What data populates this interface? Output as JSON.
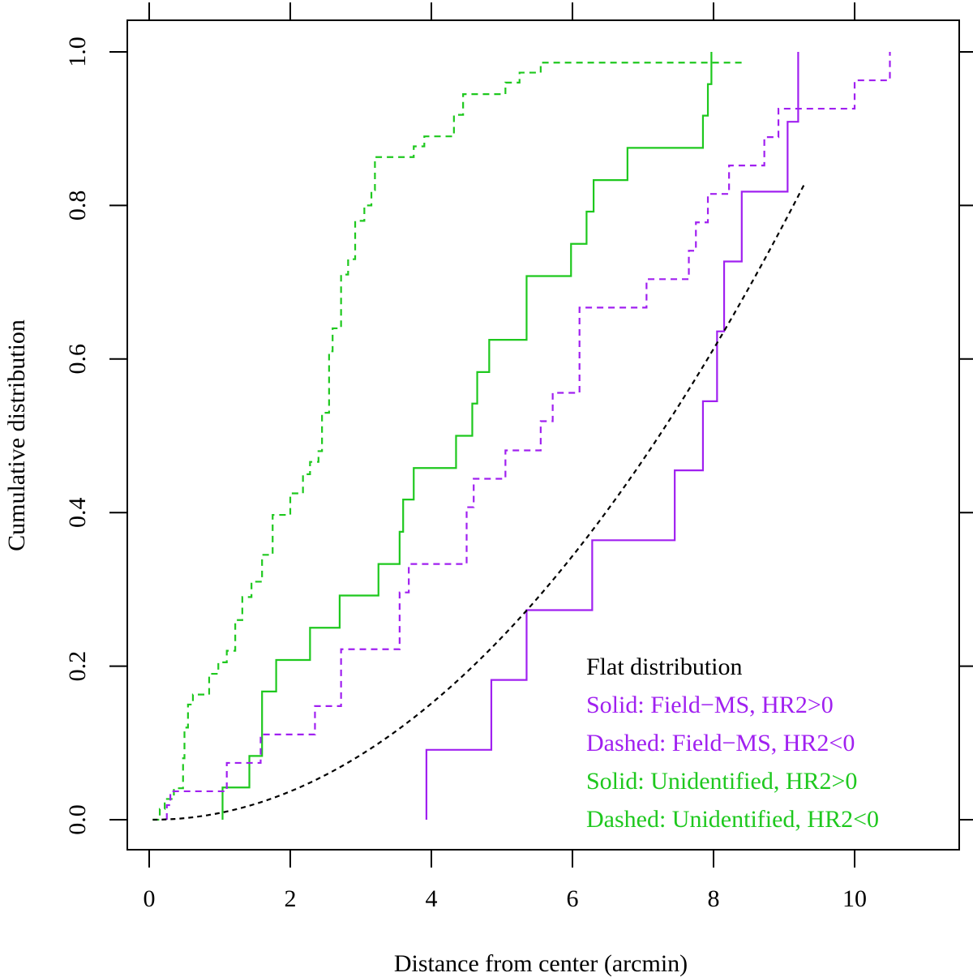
{
  "chart_data": {
    "type": "line",
    "title": "",
    "xlabel": "Distance from center (arcmin)",
    "ylabel": "Cumulative distribution",
    "xlim": [
      -0.3,
      11.5
    ],
    "ylim": [
      -0.04,
      1.04
    ],
    "xticks": [
      0,
      2,
      4,
      6,
      8,
      10
    ],
    "yticks": [
      0.0,
      0.2,
      0.4,
      0.6,
      0.8,
      1.0
    ],
    "xtick_labels": [
      "0",
      "2",
      "4",
      "6",
      "8",
      "10"
    ],
    "ytick_labels": [
      "0.0",
      "0.2",
      "0.4",
      "0.6",
      "0.8",
      "1.0"
    ],
    "top_axis_ticks": [
      0,
      2,
      4,
      6,
      8,
      10
    ],
    "right_axis_ticks": [
      0.0,
      0.2,
      0.4,
      0.6,
      0.8,
      1.0
    ],
    "colors": {
      "green": "#1ec81e",
      "purple": "#a020f0",
      "black": "#000000"
    },
    "legend": [
      {
        "text": "Flat distribution",
        "color": "#000000"
      },
      {
        "text": "Solid: Field−MS, HR2>0",
        "color": "#a020f0"
      },
      {
        "text": "Dashed: Field−MS, HR2<0",
        "color": "#a020f0"
      },
      {
        "text": "Solid: Unidentified, HR2>0",
        "color": "#1ec81e"
      },
      {
        "text": "Dashed: Unidentified, HR2<0",
        "color": "#1ec81e"
      }
    ],
    "series": [
      {
        "name": "Solid: Unidentified, HR2>0",
        "color": "#1ec81e",
        "style": "solid",
        "step": true,
        "points": [
          [
            1.04,
            0.0
          ],
          [
            1.04,
            0.042
          ],
          [
            1.42,
            0.042
          ],
          [
            1.42,
            0.083
          ],
          [
            1.6,
            0.083
          ],
          [
            1.6,
            0.167
          ],
          [
            1.8,
            0.167
          ],
          [
            1.8,
            0.208
          ],
          [
            2.28,
            0.208
          ],
          [
            2.28,
            0.25
          ],
          [
            2.7,
            0.25
          ],
          [
            2.7,
            0.292
          ],
          [
            3.25,
            0.292
          ],
          [
            3.25,
            0.333
          ],
          [
            3.55,
            0.333
          ],
          [
            3.55,
            0.375
          ],
          [
            3.6,
            0.375
          ],
          [
            3.6,
            0.417
          ],
          [
            3.75,
            0.417
          ],
          [
            3.75,
            0.458
          ],
          [
            4.35,
            0.458
          ],
          [
            4.35,
            0.5
          ],
          [
            4.58,
            0.5
          ],
          [
            4.58,
            0.542
          ],
          [
            4.65,
            0.542
          ],
          [
            4.65,
            0.583
          ],
          [
            4.82,
            0.583
          ],
          [
            4.82,
            0.625
          ],
          [
            5.35,
            0.625
          ],
          [
            5.35,
            0.708
          ],
          [
            5.98,
            0.708
          ],
          [
            5.98,
            0.75
          ],
          [
            6.2,
            0.75
          ],
          [
            6.2,
            0.792
          ],
          [
            6.3,
            0.792
          ],
          [
            6.3,
            0.833
          ],
          [
            6.78,
            0.833
          ],
          [
            6.78,
            0.875
          ],
          [
            7.85,
            0.875
          ],
          [
            7.85,
            0.917
          ],
          [
            7.92,
            0.917
          ],
          [
            7.92,
            0.958
          ],
          [
            7.97,
            0.958
          ],
          [
            7.97,
            1.0
          ]
        ]
      },
      {
        "name": "Dashed: Unidentified, HR2<0",
        "color": "#1ec81e",
        "style": "dashed",
        "step": true,
        "points": [
          [
            0.05,
            0.0
          ],
          [
            0.15,
            0.0
          ],
          [
            0.15,
            0.014
          ],
          [
            0.22,
            0.014
          ],
          [
            0.22,
            0.027
          ],
          [
            0.35,
            0.027
          ],
          [
            0.35,
            0.041
          ],
          [
            0.48,
            0.041
          ],
          [
            0.48,
            0.08
          ],
          [
            0.5,
            0.08
          ],
          [
            0.5,
            0.12
          ],
          [
            0.55,
            0.12
          ],
          [
            0.55,
            0.15
          ],
          [
            0.62,
            0.15
          ],
          [
            0.62,
            0.163
          ],
          [
            0.85,
            0.163
          ],
          [
            0.85,
            0.19
          ],
          [
            0.98,
            0.19
          ],
          [
            0.98,
            0.205
          ],
          [
            1.1,
            0.205
          ],
          [
            1.1,
            0.22
          ],
          [
            1.22,
            0.22
          ],
          [
            1.22,
            0.26
          ],
          [
            1.32,
            0.26
          ],
          [
            1.32,
            0.29
          ],
          [
            1.45,
            0.29
          ],
          [
            1.45,
            0.31
          ],
          [
            1.6,
            0.31
          ],
          [
            1.6,
            0.345
          ],
          [
            1.75,
            0.345
          ],
          [
            1.75,
            0.397
          ],
          [
            2.0,
            0.397
          ],
          [
            2.0,
            0.425
          ],
          [
            2.18,
            0.425
          ],
          [
            2.18,
            0.45
          ],
          [
            2.28,
            0.45
          ],
          [
            2.28,
            0.466
          ],
          [
            2.4,
            0.466
          ],
          [
            2.4,
            0.48
          ],
          [
            2.45,
            0.48
          ],
          [
            2.45,
            0.53
          ],
          [
            2.55,
            0.53
          ],
          [
            2.55,
            0.61
          ],
          [
            2.6,
            0.61
          ],
          [
            2.6,
            0.64
          ],
          [
            2.72,
            0.64
          ],
          [
            2.72,
            0.71
          ],
          [
            2.82,
            0.71
          ],
          [
            2.82,
            0.73
          ],
          [
            2.92,
            0.73
          ],
          [
            2.92,
            0.78
          ],
          [
            3.05,
            0.78
          ],
          [
            3.05,
            0.8
          ],
          [
            3.15,
            0.8
          ],
          [
            3.15,
            0.82
          ],
          [
            3.2,
            0.82
          ],
          [
            3.2,
            0.863
          ],
          [
            3.75,
            0.863
          ],
          [
            3.75,
            0.877
          ],
          [
            3.9,
            0.877
          ],
          [
            3.9,
            0.89
          ],
          [
            4.32,
            0.89
          ],
          [
            4.32,
            0.918
          ],
          [
            4.45,
            0.918
          ],
          [
            4.45,
            0.945
          ],
          [
            5.05,
            0.945
          ],
          [
            5.05,
            0.96
          ],
          [
            5.25,
            0.96
          ],
          [
            5.25,
            0.973
          ],
          [
            5.55,
            0.973
          ],
          [
            5.55,
            0.986
          ],
          [
            8.4,
            0.986
          ]
        ]
      },
      {
        "name": "Solid: Field−MS, HR2>0",
        "color": "#a020f0",
        "style": "solid",
        "step": true,
        "points": [
          [
            3.93,
            0.0
          ],
          [
            3.93,
            0.091
          ],
          [
            4.85,
            0.091
          ],
          [
            4.85,
            0.182
          ],
          [
            5.35,
            0.182
          ],
          [
            5.35,
            0.273
          ],
          [
            6.28,
            0.273
          ],
          [
            6.28,
            0.364
          ],
          [
            7.45,
            0.364
          ],
          [
            7.45,
            0.455
          ],
          [
            7.85,
            0.455
          ],
          [
            7.85,
            0.545
          ],
          [
            8.05,
            0.545
          ],
          [
            8.05,
            0.636
          ],
          [
            8.15,
            0.636
          ],
          [
            8.15,
            0.727
          ],
          [
            8.4,
            0.727
          ],
          [
            8.4,
            0.818
          ],
          [
            9.05,
            0.818
          ],
          [
            9.05,
            0.909
          ],
          [
            9.2,
            0.909
          ],
          [
            9.2,
            1.0
          ]
        ]
      },
      {
        "name": "Dashed: Field−MS, HR2<0",
        "color": "#a020f0",
        "style": "dashed",
        "step": true,
        "points": [
          [
            0.25,
            0.0
          ],
          [
            0.25,
            0.019
          ],
          [
            0.3,
            0.019
          ],
          [
            0.3,
            0.037
          ],
          [
            1.1,
            0.037
          ],
          [
            1.1,
            0.074
          ],
          [
            1.58,
            0.074
          ],
          [
            1.58,
            0.111
          ],
          [
            2.35,
            0.111
          ],
          [
            2.35,
            0.148
          ],
          [
            2.72,
            0.148
          ],
          [
            2.72,
            0.222
          ],
          [
            3.55,
            0.222
          ],
          [
            3.55,
            0.296
          ],
          [
            3.68,
            0.296
          ],
          [
            3.68,
            0.333
          ],
          [
            4.5,
            0.333
          ],
          [
            4.5,
            0.407
          ],
          [
            4.6,
            0.407
          ],
          [
            4.6,
            0.444
          ],
          [
            5.05,
            0.444
          ],
          [
            5.05,
            0.481
          ],
          [
            5.55,
            0.481
          ],
          [
            5.55,
            0.519
          ],
          [
            5.72,
            0.519
          ],
          [
            5.72,
            0.556
          ],
          [
            6.1,
            0.556
          ],
          [
            6.1,
            0.667
          ],
          [
            7.05,
            0.667
          ],
          [
            7.05,
            0.704
          ],
          [
            7.65,
            0.704
          ],
          [
            7.65,
            0.741
          ],
          [
            7.75,
            0.741
          ],
          [
            7.75,
            0.778
          ],
          [
            7.92,
            0.778
          ],
          [
            7.92,
            0.815
          ],
          [
            8.22,
            0.815
          ],
          [
            8.22,
            0.852
          ],
          [
            8.72,
            0.852
          ],
          [
            8.72,
            0.889
          ],
          [
            8.92,
            0.889
          ],
          [
            8.92,
            0.926
          ],
          [
            10.0,
            0.926
          ],
          [
            10.0,
            0.963
          ],
          [
            10.5,
            0.963
          ],
          [
            10.5,
            1.0
          ]
        ]
      },
      {
        "name": "Flat distribution",
        "color": "#000000",
        "style": "dotted",
        "step": false,
        "curve": "quadratic",
        "x_range": [
          0.05,
          9.3
        ],
        "y_max": 0.83
      }
    ]
  }
}
